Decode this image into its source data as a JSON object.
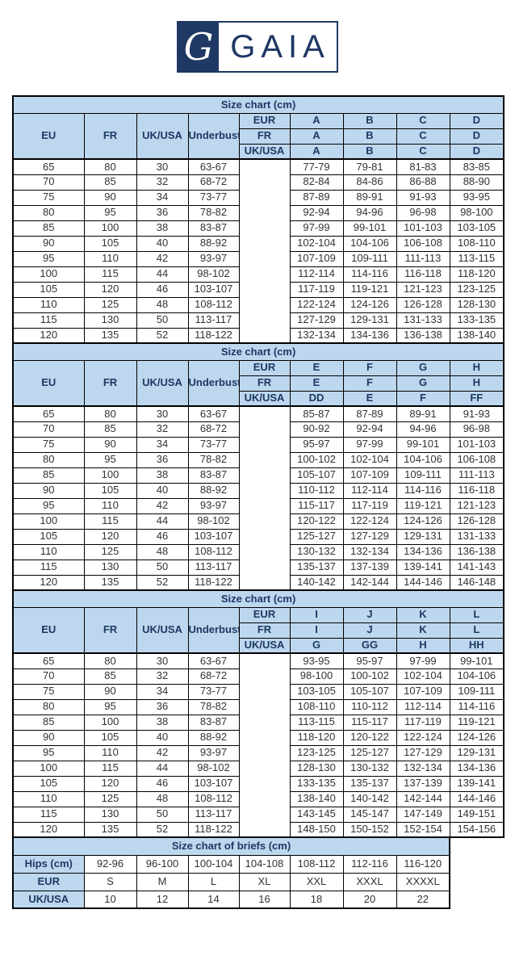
{
  "colors": {
    "header_bg": "#bdd7ee",
    "header_text": "#1f3864",
    "logo_navy": "#1f3864",
    "border": "#000000",
    "data_text": "#333333",
    "page_bg": "#ffffff"
  },
  "logo": {
    "monogram": "G",
    "brand": "GAIA"
  },
  "shared": {
    "title": "Size chart (cm)",
    "left_headers": [
      "EU",
      "FR",
      "UK/USA",
      "Underbust"
    ],
    "row_labels": [
      "EUR",
      "FR",
      "UK/USA"
    ],
    "eu": [
      "65",
      "70",
      "75",
      "80",
      "85",
      "90",
      "95",
      "100",
      "105",
      "110",
      "115",
      "120"
    ],
    "fr": [
      "80",
      "85",
      "90",
      "95",
      "100",
      "105",
      "110",
      "115",
      "120",
      "125",
      "130",
      "135"
    ],
    "ukusa": [
      "30",
      "32",
      "34",
      "36",
      "38",
      "40",
      "42",
      "44",
      "46",
      "48",
      "50",
      "52"
    ],
    "underbust": [
      "63-67",
      "68-72",
      "73-77",
      "78-82",
      "83-87",
      "88-92",
      "93-97",
      "98-102",
      "103-107",
      "108-112",
      "113-117",
      "118-122"
    ]
  },
  "charts": [
    {
      "cup_rows": [
        [
          "A",
          "B",
          "C",
          "D"
        ],
        [
          "A",
          "B",
          "C",
          "D"
        ],
        [
          "A",
          "B",
          "C",
          "D"
        ]
      ],
      "columns": [
        [
          "77-79",
          "82-84",
          "87-89",
          "92-94",
          "97-99",
          "102-104",
          "107-109",
          "112-114",
          "117-119",
          "122-124",
          "127-129",
          "132-134"
        ],
        [
          "79-81",
          "84-86",
          "89-91",
          "94-96",
          "99-101",
          "104-106",
          "109-111",
          "114-116",
          "119-121",
          "124-126",
          "129-131",
          "134-136"
        ],
        [
          "81-83",
          "86-88",
          "91-93",
          "96-98",
          "101-103",
          "106-108",
          "111-113",
          "116-118",
          "121-123",
          "126-128",
          "131-133",
          "136-138"
        ],
        [
          "83-85",
          "88-90",
          "93-95",
          "98-100",
          "103-105",
          "108-110",
          "113-115",
          "118-120",
          "123-125",
          "128-130",
          "133-135",
          "138-140"
        ]
      ]
    },
    {
      "cup_rows": [
        [
          "E",
          "F",
          "G",
          "H"
        ],
        [
          "E",
          "F",
          "G",
          "H"
        ],
        [
          "DD",
          "E",
          "F",
          "FF"
        ]
      ],
      "columns": [
        [
          "85-87",
          "90-92",
          "95-97",
          "100-102",
          "105-107",
          "110-112",
          "115-117",
          "120-122",
          "125-127",
          "130-132",
          "135-137",
          "140-142"
        ],
        [
          "87-89",
          "92-94",
          "97-99",
          "102-104",
          "107-109",
          "112-114",
          "117-119",
          "122-124",
          "127-129",
          "132-134",
          "137-139",
          "142-144"
        ],
        [
          "89-91",
          "94-96",
          "99-101",
          "104-106",
          "109-111",
          "114-116",
          "119-121",
          "124-126",
          "129-131",
          "134-136",
          "139-141",
          "144-146"
        ],
        [
          "91-93",
          "96-98",
          "101-103",
          "106-108",
          "111-113",
          "116-118",
          "121-123",
          "126-128",
          "131-133",
          "136-138",
          "141-143",
          "146-148"
        ]
      ]
    },
    {
      "cup_rows": [
        [
          "I",
          "J",
          "K",
          "L"
        ],
        [
          "I",
          "J",
          "K",
          "L"
        ],
        [
          "G",
          "GG",
          "H",
          "HH"
        ]
      ],
      "columns": [
        [
          "93-95",
          "98-100",
          "103-105",
          "108-110",
          "113-115",
          "118-120",
          "123-125",
          "128-130",
          "133-135",
          "138-140",
          "143-145",
          "148-150"
        ],
        [
          "95-97",
          "100-102",
          "105-107",
          "110-112",
          "115-117",
          "120-122",
          "125-127",
          "130-132",
          "135-137",
          "140-142",
          "145-147",
          "150-152"
        ],
        [
          "97-99",
          "102-104",
          "107-109",
          "112-114",
          "117-119",
          "122-124",
          "127-129",
          "132-134",
          "137-139",
          "142-144",
          "147-149",
          "152-154"
        ],
        [
          "99-101",
          "104-106",
          "109-111",
          "114-116",
          "119-121",
          "124-126",
          "129-131",
          "134-136",
          "139-141",
          "144-146",
          "149-151",
          "154-156"
        ]
      ]
    }
  ],
  "briefs": {
    "title": "Size chart of briefs (cm)",
    "rows": [
      {
        "label": "Hips (cm)",
        "values": [
          "92-96",
          "96-100",
          "100-104",
          "104-108",
          "108-112",
          "112-116",
          "116-120"
        ]
      },
      {
        "label": "EUR",
        "values": [
          "S",
          "M",
          "L",
          "XL",
          "XXL",
          "XXXL",
          "XXXXL"
        ]
      },
      {
        "label": "UK/USA",
        "values": [
          "10",
          "12",
          "14",
          "16",
          "18",
          "20",
          "22"
        ]
      }
    ]
  }
}
